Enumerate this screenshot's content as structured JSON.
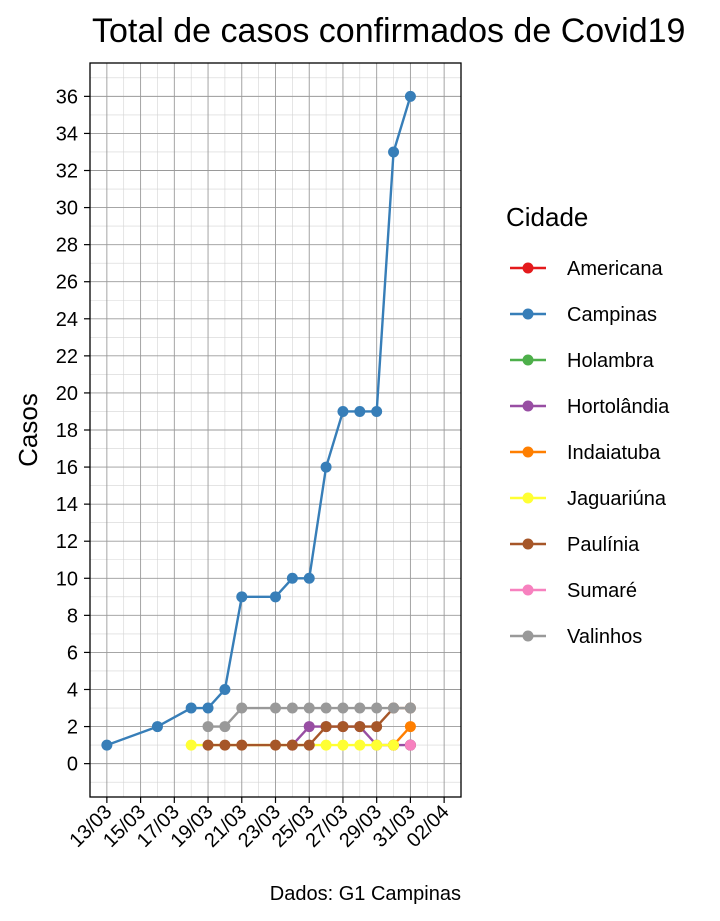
{
  "chart_data": {
    "type": "line",
    "title": "Total de casos confirmados de Covid19",
    "xlabel": "",
    "ylabel": "Casos",
    "caption": "Dados: G1 Campinas",
    "legend_title": "Cidade",
    "legend_position": "right",
    "grid": true,
    "x_type": "date",
    "xlim": [
      "2020-03-12",
      "2020-04-03"
    ],
    "ylim": [
      -1.8,
      37.8
    ],
    "x_ticks": [
      "2020-03-13",
      "2020-03-15",
      "2020-03-17",
      "2020-03-19",
      "2020-03-21",
      "2020-03-23",
      "2020-03-25",
      "2020-03-27",
      "2020-03-29",
      "2020-03-31",
      "2020-04-02"
    ],
    "x_tick_labels": [
      "13/03",
      "15/03",
      "17/03",
      "19/03",
      "21/03",
      "23/03",
      "25/03",
      "27/03",
      "29/03",
      "31/03",
      "02/04"
    ],
    "y_ticks": [
      0,
      2,
      4,
      6,
      8,
      10,
      12,
      14,
      16,
      18,
      20,
      22,
      24,
      26,
      28,
      30,
      32,
      34,
      36
    ],
    "series": [
      {
        "name": "Americana",
        "color": "#E41A1C",
        "points": [
          [
            "2020-03-31",
            1
          ]
        ]
      },
      {
        "name": "Campinas",
        "color": "#377EB8",
        "points": [
          [
            "2020-03-13",
            1
          ],
          [
            "2020-03-16",
            2
          ],
          [
            "2020-03-18",
            3
          ],
          [
            "2020-03-19",
            3
          ],
          [
            "2020-03-20",
            4
          ],
          [
            "2020-03-21",
            9
          ],
          [
            "2020-03-23",
            9
          ],
          [
            "2020-03-24",
            10
          ],
          [
            "2020-03-25",
            10
          ],
          [
            "2020-03-26",
            16
          ],
          [
            "2020-03-27",
            19
          ],
          [
            "2020-03-28",
            19
          ],
          [
            "2020-03-29",
            19
          ],
          [
            "2020-03-30",
            33
          ],
          [
            "2020-03-31",
            36
          ]
        ]
      },
      {
        "name": "Holambra",
        "color": "#4DAF4A",
        "points": [
          [
            "2020-03-31",
            1
          ]
        ]
      },
      {
        "name": "Hortolândia",
        "color": "#984EA3",
        "points": [
          [
            "2020-03-24",
            1
          ],
          [
            "2020-03-25",
            2
          ],
          [
            "2020-03-26",
            2
          ],
          [
            "2020-03-27",
            2
          ],
          [
            "2020-03-28",
            2
          ],
          [
            "2020-03-29",
            1
          ],
          [
            "2020-03-30",
            1
          ],
          [
            "2020-03-31",
            1
          ]
        ]
      },
      {
        "name": "Indaiatuba",
        "color": "#FF7F00",
        "points": [
          [
            "2020-03-30",
            1
          ],
          [
            "2020-03-31",
            2
          ]
        ]
      },
      {
        "name": "Jaguariúna",
        "color": "#FFFF33",
        "points": [
          [
            "2020-03-18",
            1
          ],
          [
            "2020-03-26",
            1
          ],
          [
            "2020-03-27",
            1
          ],
          [
            "2020-03-28",
            1
          ],
          [
            "2020-03-29",
            1
          ],
          [
            "2020-03-30",
            1
          ]
        ]
      },
      {
        "name": "Paulínia",
        "color": "#A65628",
        "points": [
          [
            "2020-03-19",
            1
          ],
          [
            "2020-03-20",
            1
          ],
          [
            "2020-03-21",
            1
          ],
          [
            "2020-03-23",
            1
          ],
          [
            "2020-03-24",
            1
          ],
          [
            "2020-03-25",
            1
          ],
          [
            "2020-03-26",
            2
          ],
          [
            "2020-03-27",
            2
          ],
          [
            "2020-03-28",
            2
          ],
          [
            "2020-03-29",
            2
          ],
          [
            "2020-03-30",
            3
          ],
          [
            "2020-03-31",
            3
          ]
        ]
      },
      {
        "name": "Sumaré",
        "color": "#F781BF",
        "points": [
          [
            "2020-03-31",
            1
          ]
        ]
      },
      {
        "name": "Valinhos",
        "color": "#999999",
        "points": [
          [
            "2020-03-19",
            2
          ],
          [
            "2020-03-20",
            2
          ],
          [
            "2020-03-21",
            3
          ],
          [
            "2020-03-23",
            3
          ],
          [
            "2020-03-24",
            3
          ],
          [
            "2020-03-25",
            3
          ],
          [
            "2020-03-26",
            3
          ],
          [
            "2020-03-27",
            3
          ],
          [
            "2020-03-28",
            3
          ],
          [
            "2020-03-29",
            3
          ],
          [
            "2020-03-30",
            3
          ],
          [
            "2020-03-31",
            3
          ]
        ]
      }
    ]
  }
}
